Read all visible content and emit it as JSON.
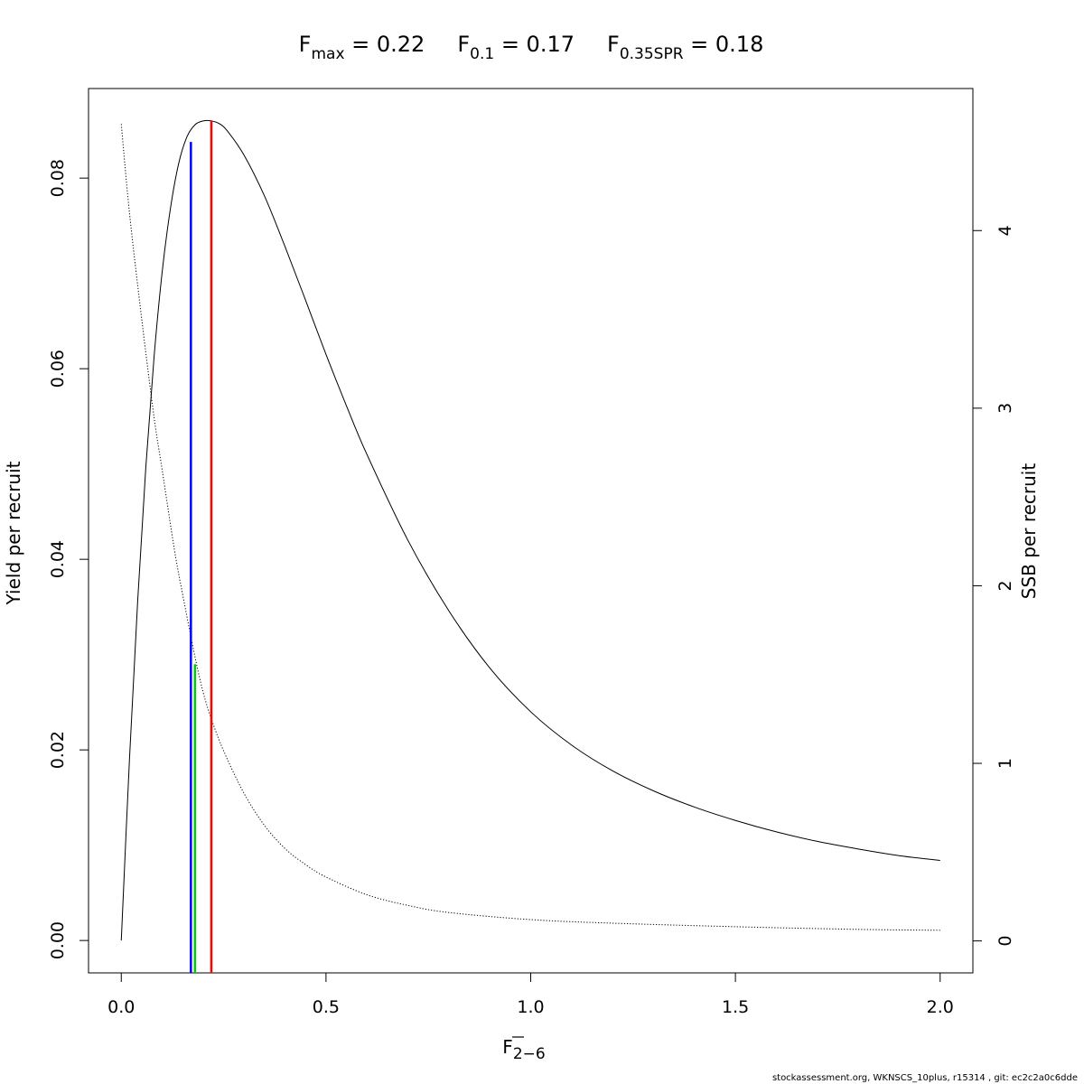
{
  "chart_data": {
    "type": "line",
    "title_parts": [
      {
        "main": "F",
        "sub": "max",
        "rest": " = 0.22"
      },
      {
        "main": "F",
        "sub": "0.1",
        "rest": " = 0.17"
      },
      {
        "main": "F",
        "sub": "0.35SPR",
        "rest": " = 0.18"
      }
    ],
    "xlabel": {
      "main": "F",
      "sub": "2−6"
    },
    "ylabel_left": "Yield per recruit",
    "ylabel_right": "SSB per recruit",
    "xlim": [
      -0.08,
      2.08
    ],
    "ylim_left": [
      -0.0034,
      0.0894
    ],
    "ylim_right": [
      -0.18,
      4.8
    ],
    "x_ticks": [
      {
        "value": 0.0,
        "label": "0.0"
      },
      {
        "value": 0.5,
        "label": "0.5"
      },
      {
        "value": 1.0,
        "label": "1.0"
      },
      {
        "value": 1.5,
        "label": "1.5"
      },
      {
        "value": 2.0,
        "label": "2.0"
      }
    ],
    "y_ticks_left": [
      {
        "value": 0.0,
        "label": "0.00"
      },
      {
        "value": 0.02,
        "label": "0.02"
      },
      {
        "value": 0.04,
        "label": "0.04"
      },
      {
        "value": 0.06,
        "label": "0.06"
      },
      {
        "value": 0.08,
        "label": "0.08"
      }
    ],
    "y_ticks_right": [
      {
        "value": 0,
        "label": "0"
      },
      {
        "value": 1,
        "label": "1"
      },
      {
        "value": 2,
        "label": "2"
      },
      {
        "value": 3,
        "label": "3"
      },
      {
        "value": 4,
        "label": "4"
      }
    ],
    "series": [
      {
        "axis": "left",
        "style": "solid",
        "color": "#000000",
        "x": [
          0.0,
          0.02,
          0.04,
          0.06,
          0.08,
          0.1,
          0.12,
          0.14,
          0.16,
          0.18,
          0.2,
          0.22,
          0.24,
          0.26,
          0.3,
          0.35,
          0.4,
          0.45,
          0.5,
          0.55,
          0.6,
          0.7,
          0.8,
          0.9,
          1.0,
          1.1,
          1.2,
          1.3,
          1.4,
          1.5,
          1.6,
          1.7,
          1.8,
          1.9,
          2.0
        ],
        "y": [
          0.0,
          0.019,
          0.0356,
          0.0497,
          0.0612,
          0.0702,
          0.0768,
          0.0815,
          0.0843,
          0.0856,
          0.086,
          0.086,
          0.0857,
          0.0849,
          0.0824,
          0.0781,
          0.0728,
          0.0672,
          0.0615,
          0.0561,
          0.051,
          0.042,
          0.0346,
          0.0286,
          0.024,
          0.0205,
          0.0178,
          0.0157,
          0.014,
          0.0126,
          0.0114,
          0.0104,
          0.0096,
          0.0089,
          0.0084
        ]
      },
      {
        "axis": "right",
        "style": "dotted",
        "color": "#000000",
        "x": [
          0.0,
          0.02,
          0.05,
          0.08,
          0.1,
          0.13,
          0.15,
          0.18,
          0.2,
          0.22,
          0.25,
          0.3,
          0.35,
          0.4,
          0.45,
          0.5,
          0.6,
          0.7,
          0.8,
          1.0,
          1.2,
          1.5,
          1.8,
          2.0
        ],
        "y": [
          4.6,
          4.1,
          3.5,
          2.95,
          2.65,
          2.2,
          1.95,
          1.6,
          1.4,
          1.25,
          1.07,
          0.83,
          0.65,
          0.52,
          0.43,
          0.36,
          0.26,
          0.2,
          0.16,
          0.12,
          0.1,
          0.08,
          0.065,
          0.06
        ]
      }
    ],
    "reference_lines": [
      {
        "name": "F0.1",
        "x": 0.17,
        "y_top": 0.0838,
        "color": "#0000ff"
      },
      {
        "name": "F0.35SPR",
        "x": 0.18,
        "y_top": 0.029,
        "color": "#00cc00"
      },
      {
        "name": "Fmax",
        "x": 0.22,
        "y_top": 0.086,
        "color": "#ff0000"
      }
    ]
  },
  "footer": "stockassessment.org, WKNSCS_10plus, r15314 , git: ec2c2a0c6dde"
}
